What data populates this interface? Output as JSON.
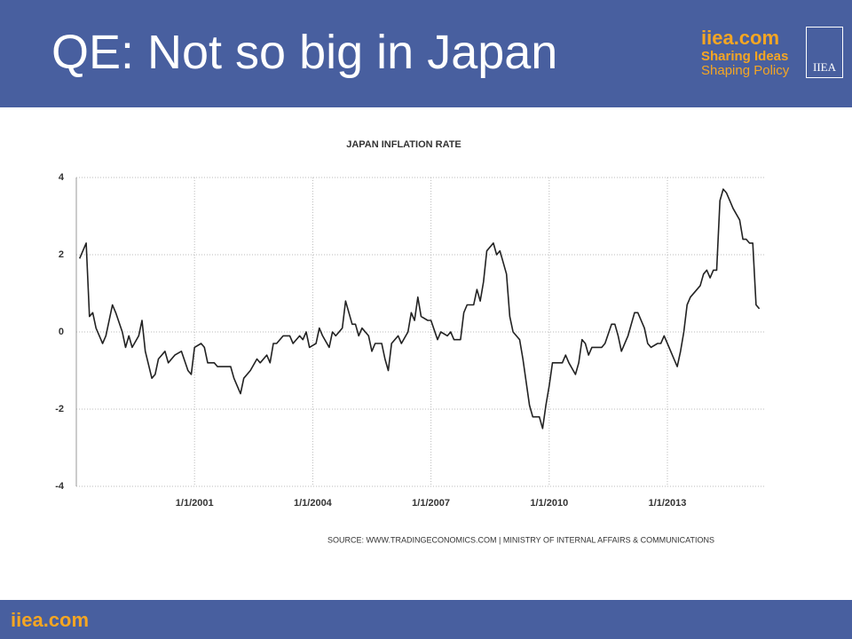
{
  "slide": {
    "title": "QE: Not so big in Japan",
    "logo": {
      "site": "iiea.com",
      "line1": "Sharing Ideas",
      "line2": "Shaping Policy",
      "mark": "IIEA"
    },
    "footer": "iiea.com"
  },
  "chart_data": {
    "type": "line",
    "title": "JAPAN INFLATION RATE",
    "source": "SOURCE: WWW.TRADINGECONOMICS.COM | MINISTRY OF INTERNAL AFFAIRS & COMMUNICATIONS",
    "x": [
      "2/1/1998",
      "4/1/1998",
      "5/1/1998",
      "6/1/1998",
      "7/1/1998",
      "9/1/1998",
      "10/1/1998",
      "12/1/1998",
      "1/1/1999",
      "3/1/1999",
      "4/1/1999",
      "5/1/1999",
      "6/1/1999",
      "8/1/1999",
      "9/1/1999",
      "10/1/1999",
      "12/1/1999",
      "1/1/2000",
      "2/1/2000",
      "4/1/2000",
      "5/1/2000",
      "7/1/2000",
      "9/1/2000",
      "11/1/2000",
      "12/1/2000",
      "1/1/2001",
      "3/1/2001",
      "4/1/2001",
      "5/1/2001",
      "7/1/2001",
      "8/1/2001",
      "10/1/2001",
      "12/1/2001",
      "1/1/2002",
      "3/1/2002",
      "4/1/2002",
      "6/1/2002",
      "8/1/2002",
      "9/1/2002",
      "11/1/2002",
      "12/1/2002",
      "1/1/2003",
      "2/1/2003",
      "4/1/2003",
      "6/1/2003",
      "7/1/2003",
      "9/1/2003",
      "10/1/2003",
      "11/1/2003",
      "12/1/2003",
      "2/1/2004",
      "3/1/2004",
      "4/1/2004",
      "6/1/2004",
      "7/1/2004",
      "8/1/2004",
      "10/1/2004",
      "11/1/2004",
      "1/1/2005",
      "2/1/2005",
      "3/1/2005",
      "4/1/2005",
      "6/1/2005",
      "7/1/2005",
      "8/1/2005",
      "10/1/2005",
      "11/1/2005",
      "12/1/2005",
      "1/1/2006",
      "3/1/2006",
      "4/1/2006",
      "6/1/2006",
      "7/1/2006",
      "8/1/2006",
      "9/1/2006",
      "10/1/2006",
      "12/1/2006",
      "1/1/2007",
      "3/1/2007",
      "4/1/2007",
      "6/1/2007",
      "7/1/2007",
      "8/1/2007",
      "10/1/2007",
      "11/1/2007",
      "12/1/2007",
      "2/1/2008",
      "3/1/2008",
      "4/1/2008",
      "5/1/2008",
      "6/1/2008",
      "8/1/2008",
      "9/1/2008",
      "10/1/2008",
      "12/1/2008",
      "1/1/2009",
      "2/1/2009",
      "4/1/2009",
      "5/1/2009",
      "6/1/2009",
      "7/1/2009",
      "8/1/2009",
      "9/1/2009",
      "10/1/2009",
      "11/1/2009",
      "12/1/2009",
      "1/1/2010",
      "2/1/2010",
      "3/1/2010",
      "5/1/2010",
      "6/1/2010",
      "7/1/2010",
      "9/1/2010",
      "10/1/2010",
      "11/1/2010",
      "12/1/2010",
      "1/1/2011",
      "2/1/2011",
      "4/1/2011",
      "5/1/2011",
      "6/1/2011",
      "8/1/2011",
      "9/1/2011",
      "10/1/2011",
      "11/1/2011",
      "1/1/2012",
      "2/1/2012",
      "3/1/2012",
      "4/1/2012",
      "6/1/2012",
      "7/1/2012",
      "8/1/2012",
      "10/1/2012",
      "11/1/2012",
      "12/1/2012",
      "1/1/2013",
      "3/1/2013",
      "4/1/2013",
      "5/1/2013",
      "6/1/2013",
      "7/1/2013",
      "8/1/2013",
      "10/1/2013",
      "11/1/2013",
      "12/1/2013",
      "1/1/2014",
      "2/1/2014",
      "3/1/2014",
      "4/1/2014",
      "5/1/2014",
      "6/1/2014",
      "7/1/2014",
      "8/1/2014",
      "9/1/2014",
      "11/1/2014",
      "12/1/2014",
      "1/1/2015",
      "2/1/2015",
      "3/1/2015",
      "4/1/2015",
      "5/1/2015"
    ],
    "series": [
      {
        "color": "#222222",
        "values": [
          1.9,
          2.3,
          0.4,
          0.5,
          0.1,
          -0.3,
          -0.1,
          0.7,
          0.5,
          0.0,
          -0.4,
          -0.1,
          -0.4,
          -0.1,
          0.3,
          -0.5,
          -1.2,
          -1.1,
          -0.7,
          -0.5,
          -0.8,
          -0.6,
          -0.5,
          -1.0,
          -1.1,
          -0.4,
          -0.3,
          -0.4,
          -0.8,
          -0.8,
          -0.9,
          -0.9,
          -0.9,
          -1.2,
          -1.6,
          -1.2,
          -1.0,
          -0.7,
          -0.8,
          -0.6,
          -0.8,
          -0.3,
          -0.3,
          -0.1,
          -0.1,
          -0.3,
          -0.1,
          -0.2,
          0.0,
          -0.4,
          -0.3,
          0.1,
          -0.1,
          -0.4,
          0.0,
          -0.1,
          0.1,
          0.8,
          0.2,
          0.2,
          -0.1,
          0.1,
          -0.1,
          -0.5,
          -0.3,
          -0.3,
          -0.7,
          -1.0,
          -0.3,
          -0.1,
          -0.3,
          0.0,
          0.5,
          0.3,
          0.9,
          0.4,
          0.3,
          0.3,
          -0.2,
          0.0,
          -0.1,
          0.0,
          -0.2,
          -0.2,
          0.5,
          0.7,
          0.7,
          1.1,
          0.8,
          1.3,
          2.1,
          2.3,
          2.0,
          2.1,
          1.5,
          0.4,
          0.0,
          -0.2,
          -0.7,
          -1.3,
          -1.9,
          -2.2,
          -2.2,
          -2.2,
          -2.5,
          -1.9,
          -1.4,
          -0.8,
          -0.8,
          -0.8,
          -0.6,
          -0.8,
          -1.1,
          -0.8,
          -0.2,
          -0.3,
          -0.6,
          -0.4,
          -0.4,
          -0.4,
          -0.3,
          0.2,
          0.2,
          -0.1,
          -0.5,
          -0.1,
          0.2,
          0.5,
          0.5,
          0.1,
          -0.3,
          -0.4,
          -0.3,
          -0.3,
          -0.1,
          -0.3,
          -0.7,
          -0.9,
          -0.5,
          0.0,
          0.7,
          0.9,
          1.1,
          1.2,
          1.5,
          1.6,
          1.4,
          1.6,
          1.6,
          3.4,
          3.7,
          3.6,
          3.4,
          3.2,
          2.9,
          2.4,
          2.4,
          2.3,
          2.3,
          0.7,
          0.6
        ]
      }
    ],
    "xlim": [
      "1/1/1998",
      "7/1/2015"
    ],
    "xticks": [
      "1/1/2001",
      "1/1/2004",
      "1/1/2007",
      "1/1/2010",
      "1/1/2013"
    ],
    "ylim": [
      -4,
      4
    ],
    "yticks": [
      -4,
      -2,
      0,
      2,
      4
    ],
    "grid": true
  }
}
